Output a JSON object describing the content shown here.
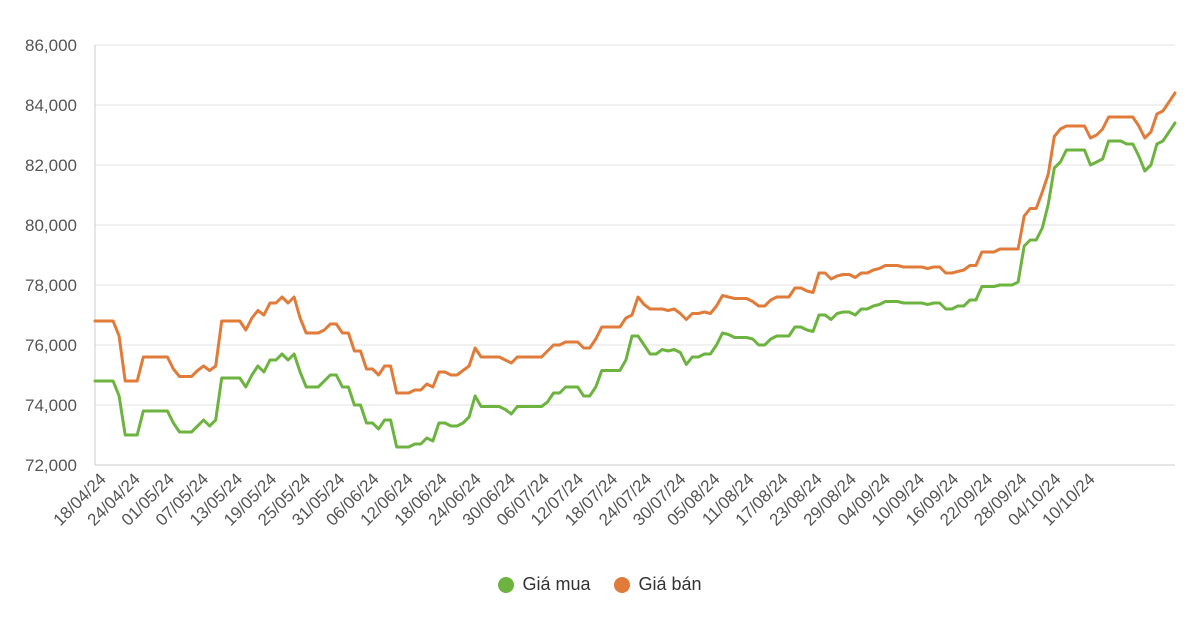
{
  "chart_data": {
    "type": "line",
    "ylim": [
      72000,
      86000
    ],
    "y_ticks": [
      "72,000",
      "74,000",
      "76,000",
      "78,000",
      "80,000",
      "82,000",
      "84,000",
      "86,000"
    ],
    "y_tick_values": [
      72000,
      74000,
      76000,
      78000,
      80000,
      82000,
      84000,
      86000
    ],
    "x_tick_labels": [
      "18/04/24",
      "24/04/24",
      "01/05/24",
      "07/05/24",
      "13/05/24",
      "19/05/24",
      "25/05/24",
      "31/05/24",
      "06/06/24",
      "12/06/24",
      "18/06/24",
      "24/06/24",
      "30/06/24",
      "06/07/24",
      "12/07/24",
      "18/07/24",
      "24/07/24",
      "30/07/24",
      "05/08/24",
      "11/08/24",
      "17/08/24",
      "23/08/24",
      "29/08/24",
      "04/09/24",
      "10/09/24",
      "16/09/24",
      "22/09/24",
      "28/09/24",
      "04/10/24",
      "10/10/24"
    ],
    "grid": true,
    "legend_position": "bottom-center",
    "colors": {
      "buy": "#6db33f",
      "sell": "#e07b39"
    },
    "series": [
      {
        "name": "Giá mua",
        "values": [
          74800,
          74800,
          74800,
          74800,
          74300,
          73000,
          73000,
          73000,
          73800,
          73800,
          73800,
          73800,
          73800,
          73400,
          73100,
          73100,
          73100,
          73300,
          73500,
          73300,
          73500,
          74900,
          74900,
          74900,
          74900,
          74600,
          75000,
          75300,
          75100,
          75500,
          75500,
          75700,
          75500,
          75700,
          75100,
          74600,
          74600,
          74600,
          74800,
          75000,
          75000,
          74600,
          74600,
          74000,
          74000,
          73400,
          73400,
          73200,
          73500,
          73500,
          72600,
          72600,
          72600,
          72700,
          72700,
          72900,
          72800,
          73400,
          73400,
          73300,
          73300,
          73400,
          73600,
          74300,
          73950,
          73950,
          73950,
          73950,
          73850,
          73700,
          73950,
          73950,
          73950,
          73950,
          73950,
          74100,
          74400,
          74400,
          74600,
          74600,
          74600,
          74300,
          74300,
          74600,
          75150,
          75150,
          75150,
          75150,
          75500,
          76300,
          76300,
          76000,
          75700,
          75700,
          75850,
          75800,
          75850,
          75750,
          75350,
          75600,
          75600,
          75700,
          75700,
          76000,
          76400,
          76350,
          76250,
          76250,
          76250,
          76200,
          76000,
          76000,
          76200,
          76300,
          76300,
          76300,
          76600,
          76600,
          76500,
          76450,
          77000,
          77000,
          76850,
          77050,
          77100,
          77100,
          77000,
          77200,
          77200,
          77300,
          77350,
          77450,
          77450,
          77450,
          77400,
          77400,
          77400,
          77400,
          77350,
          77400,
          77400,
          77200,
          77200,
          77300,
          77300,
          77500,
          77500,
          77950,
          77950,
          77950,
          78000,
          78000,
          78000,
          78100,
          79300,
          79500,
          79500,
          79900,
          80700,
          81900,
          82100,
          82500,
          82500,
          82500,
          82500,
          82000,
          82100,
          82200,
          82800,
          82800,
          82800,
          82700,
          82700,
          82300,
          81800,
          82000,
          82700,
          82800,
          83100,
          83400
        ]
      },
      {
        "name": "Giá bán",
        "values": [
          76800,
          76800,
          76800,
          76800,
          76300,
          74800,
          74800,
          74800,
          75600,
          75600,
          75600,
          75600,
          75600,
          75200,
          74950,
          74950,
          74950,
          75150,
          75300,
          75150,
          75300,
          76800,
          76800,
          76800,
          76800,
          76500,
          76900,
          77150,
          77000,
          77400,
          77400,
          77600,
          77400,
          77600,
          76900,
          76400,
          76400,
          76400,
          76500,
          76700,
          76700,
          76400,
          76400,
          75800,
          75800,
          75200,
          75200,
          75000,
          75300,
          75300,
          74400,
          74400,
          74400,
          74500,
          74500,
          74700,
          74600,
          75100,
          75100,
          75000,
          75000,
          75150,
          75300,
          75900,
          75600,
          75600,
          75600,
          75600,
          75500,
          75400,
          75600,
          75600,
          75600,
          75600,
          75600,
          75800,
          76000,
          76000,
          76100,
          76100,
          76100,
          75900,
          75900,
          76200,
          76600,
          76600,
          76600,
          76600,
          76900,
          77000,
          77600,
          77350,
          77200,
          77200,
          77200,
          77150,
          77200,
          77050,
          76850,
          77050,
          77050,
          77100,
          77050,
          77300,
          77650,
          77600,
          77550,
          77550,
          77550,
          77450,
          77300,
          77300,
          77500,
          77600,
          77600,
          77600,
          77900,
          77900,
          77800,
          77750,
          78400,
          78400,
          78200,
          78300,
          78350,
          78350,
          78250,
          78400,
          78400,
          78500,
          78550,
          78650,
          78650,
          78650,
          78600,
          78600,
          78600,
          78600,
          78550,
          78600,
          78600,
          78400,
          78400,
          78450,
          78500,
          78650,
          78650,
          79100,
          79100,
          79100,
          79200,
          79200,
          79200,
          79200,
          80300,
          80550,
          80550,
          81100,
          81700,
          82950,
          83200,
          83300,
          83300,
          83300,
          83300,
          82900,
          83000,
          83200,
          83600,
          83600,
          83600,
          83600,
          83600,
          83300,
          82900,
          83100,
          83700,
          83800,
          84100,
          84400
        ]
      }
    ]
  }
}
